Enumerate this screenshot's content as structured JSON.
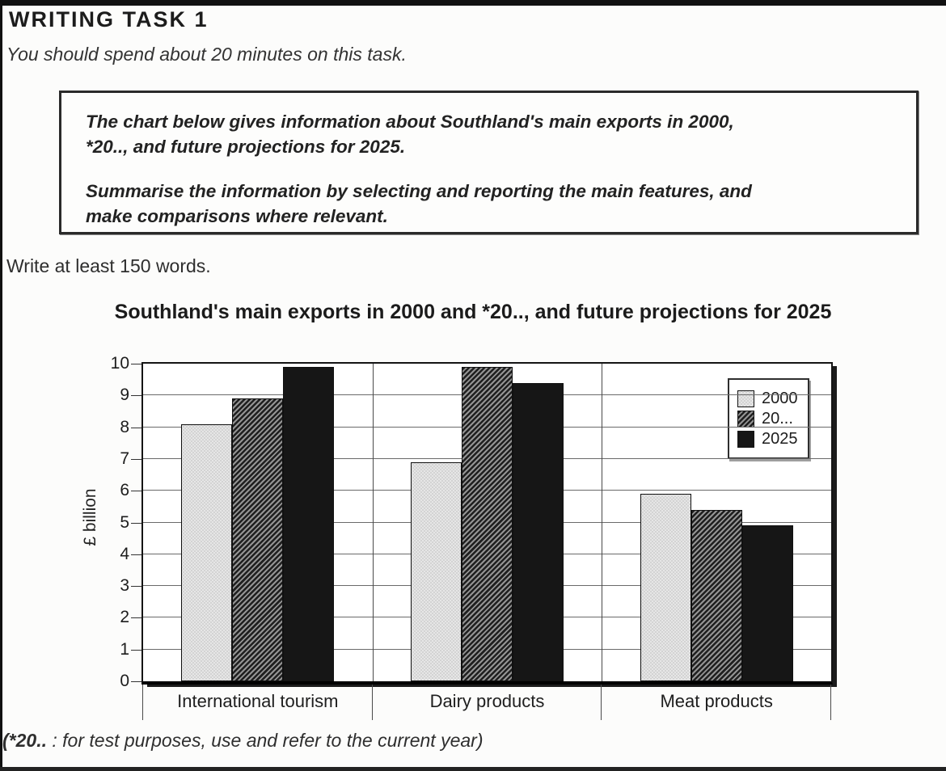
{
  "page": {
    "heading": "WRITING TASK 1",
    "time_note": "You should spend about 20 minutes on this task.",
    "task_box": {
      "paragraph1": "The chart below gives information about Southland's main exports in 2000,\n*20.., and future projections for 2025.",
      "paragraph2": "Summarise the information by selecting and reporting the main features, and\nmake comparisons where relevant."
    },
    "length_note": "Write at least 150 words.",
    "footnote": {
      "bold_part": "(*20..",
      "rest": " : for test purposes, use and refer to the current year)"
    }
  },
  "chart_data": {
    "type": "bar",
    "title": "Southland's main exports in 2000 and *20..,  and future projections for 2025",
    "ylabel": "£ billion",
    "xlabel": "",
    "ylim": [
      0,
      10
    ],
    "yticks": [
      0,
      1,
      2,
      3,
      4,
      5,
      6,
      7,
      8,
      9,
      10
    ],
    "grid": true,
    "legend_position": "top-right",
    "categories": [
      "International tourism",
      "Dairy products",
      "Meat products"
    ],
    "series": [
      {
        "name": "2000",
        "pattern": "stipple",
        "values": [
          8.1,
          6.9,
          5.9
        ]
      },
      {
        "name": "20...",
        "pattern": "hatch",
        "values": [
          8.9,
          9.9,
          5.4
        ]
      },
      {
        "name": "2025",
        "pattern": "solid",
        "values": [
          9.9,
          9.4,
          4.9
        ]
      }
    ],
    "colors": {
      "stipple_bg": "#e6e6e6",
      "stipple_dot": "#9a9a9a",
      "hatch_dark": "#1f1f1f",
      "hatch_light": "#949494",
      "solid": "#161616",
      "axis": "#111111"
    }
  }
}
